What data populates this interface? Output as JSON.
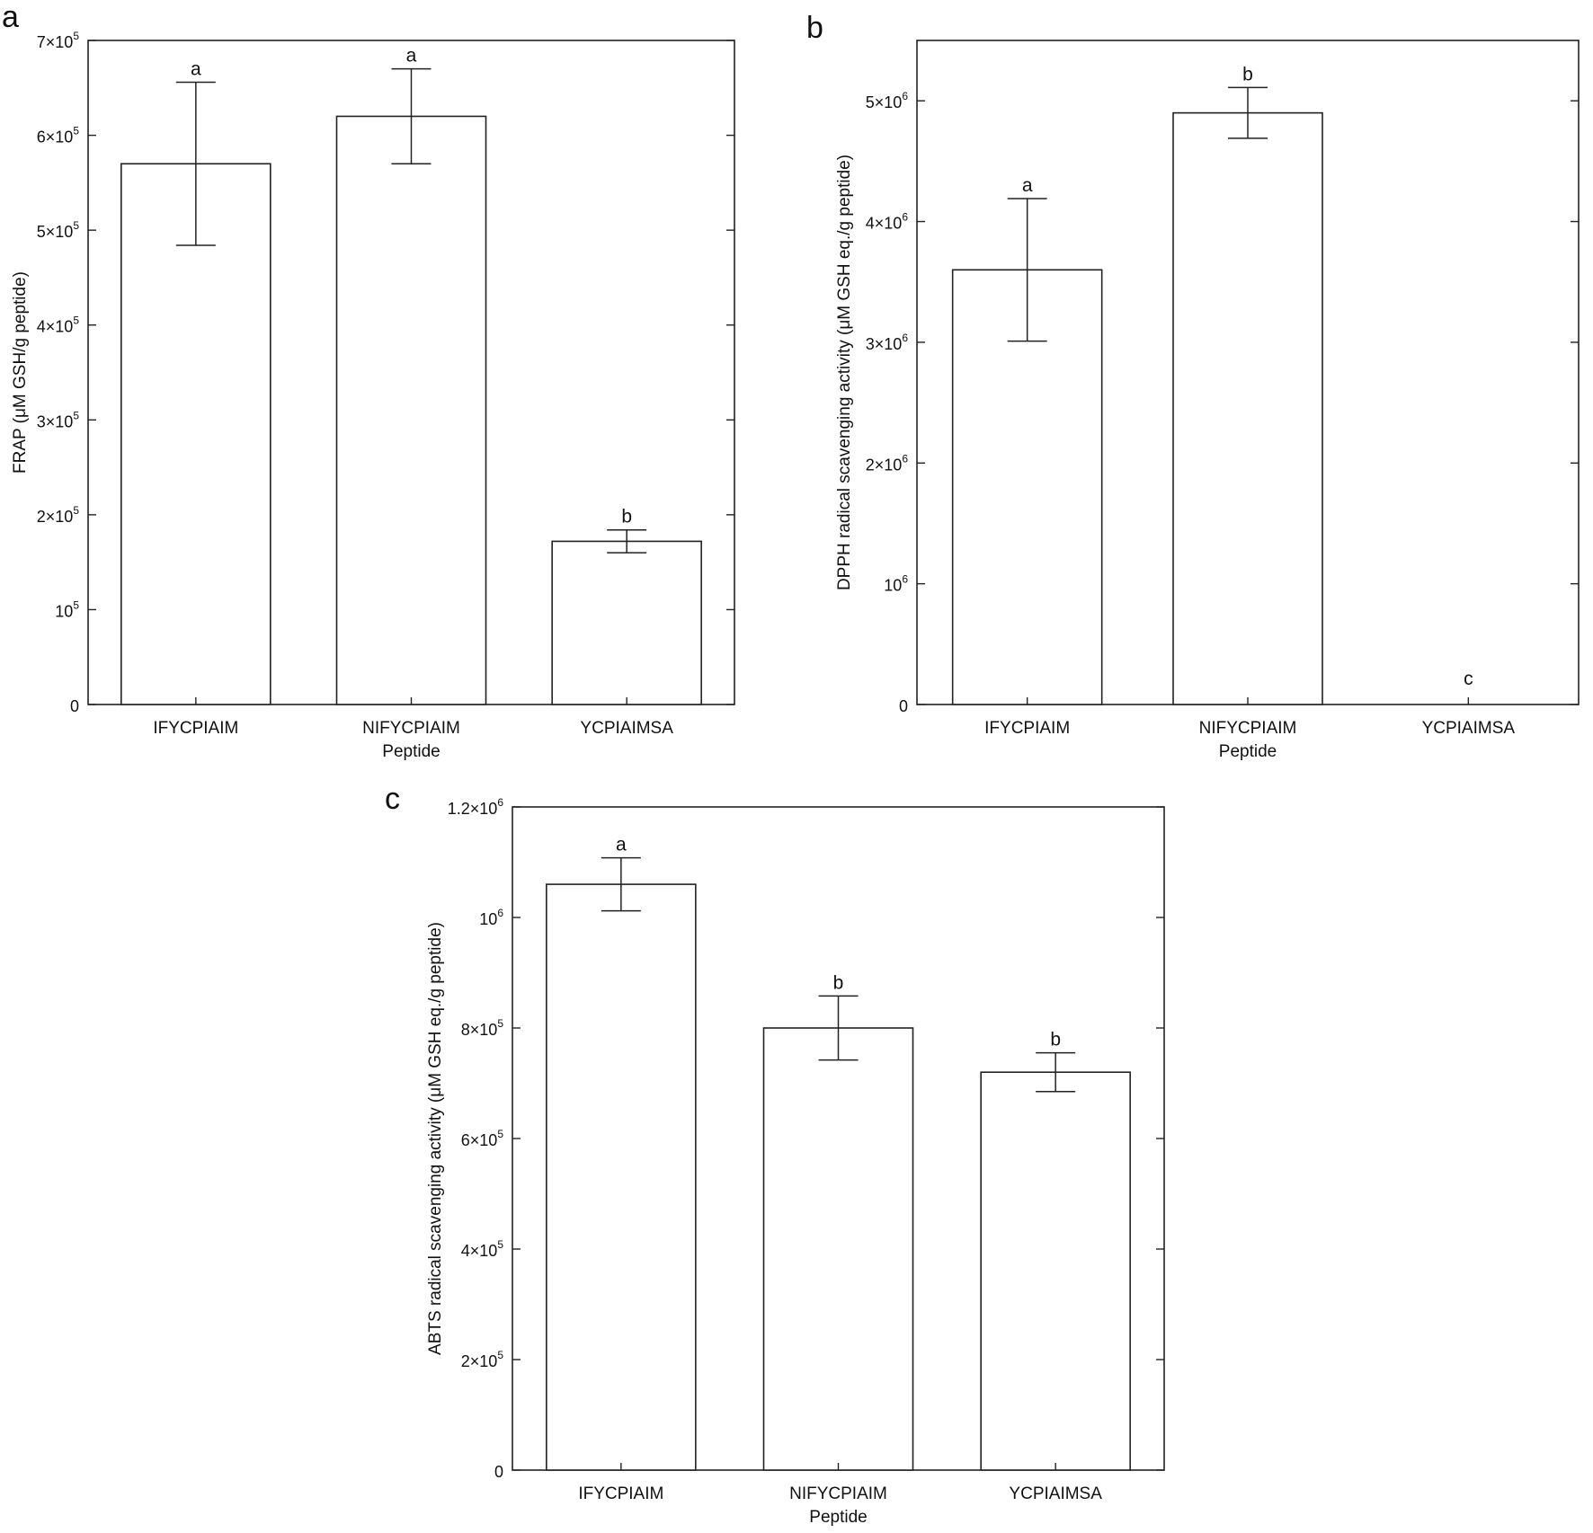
{
  "chart_data": [
    {
      "panel": "a",
      "type": "bar",
      "categories": [
        "IFYCPIAIM",
        "NIFYCPIAIM",
        "YCPIAIMSA"
      ],
      "values": [
        570000,
        620000,
        172000
      ],
      "errors": [
        86000,
        50000,
        12000
      ],
      "significance": [
        "a",
        "a",
        "b"
      ],
      "xlabel": "Peptide",
      "ylabel": "FRAP (μM GSH/g peptide)",
      "ylim": [
        0,
        700000
      ],
      "yticks": [
        0,
        100000,
        200000,
        300000,
        400000,
        500000,
        600000,
        700000
      ],
      "ytick_labels": [
        {
          "base": "0",
          "exp": ""
        },
        {
          "base": "10",
          "exp": "5"
        },
        {
          "base": "2×10",
          "exp": "5"
        },
        {
          "base": "3×10",
          "exp": "5"
        },
        {
          "base": "4×10",
          "exp": "5"
        },
        {
          "base": "5×10",
          "exp": "5"
        },
        {
          "base": "6×10",
          "exp": "5"
        },
        {
          "base": "7×10",
          "exp": "5"
        }
      ],
      "grid": false
    },
    {
      "panel": "b",
      "type": "bar",
      "categories": [
        "IFYCPIAIM",
        "NIFYCPIAIM",
        "YCPIAIMSA"
      ],
      "values": [
        3600000,
        4900000,
        0
      ],
      "errors": [
        590000,
        210000,
        0
      ],
      "significance": [
        "a",
        "b",
        "c"
      ],
      "xlabel": "Peptide",
      "ylabel": "DPPH radical scavenging activity (μM GSH eq./g peptide)",
      "ylim": [
        0,
        5500000
      ],
      "yticks": [
        0,
        1000000,
        2000000,
        3000000,
        4000000,
        5000000
      ],
      "ytick_labels": [
        {
          "base": "0",
          "exp": ""
        },
        {
          "base": "10",
          "exp": "6"
        },
        {
          "base": "2×10",
          "exp": "6"
        },
        {
          "base": "3×10",
          "exp": "6"
        },
        {
          "base": "4×10",
          "exp": "6"
        },
        {
          "base": "5×10",
          "exp": "6"
        }
      ],
      "grid": false
    },
    {
      "panel": "c",
      "type": "bar",
      "categories": [
        "IFYCPIAIM",
        "NIFYCPIAIM",
        "YCPIAIMSA"
      ],
      "values": [
        1060000,
        800000,
        720000
      ],
      "errors": [
        48000,
        58000,
        35000
      ],
      "significance": [
        "a",
        "b",
        "b"
      ],
      "xlabel": "Peptide",
      "ylabel": "ABTS radical scavenging activity (μM GSH eq./g peptide)",
      "ylim": [
        0,
        1200000
      ],
      "yticks": [
        0,
        200000,
        400000,
        600000,
        800000,
        1000000,
        1200000
      ],
      "ytick_labels": [
        {
          "base": "0",
          "exp": ""
        },
        {
          "base": "2×10",
          "exp": "5"
        },
        {
          "base": "4×10",
          "exp": "5"
        },
        {
          "base": "6×10",
          "exp": "5"
        },
        {
          "base": "8×10",
          "exp": "5"
        },
        {
          "base": "10",
          "exp": "6"
        },
        {
          "base": "1.2×10",
          "exp": "6"
        }
      ],
      "grid": false
    }
  ]
}
